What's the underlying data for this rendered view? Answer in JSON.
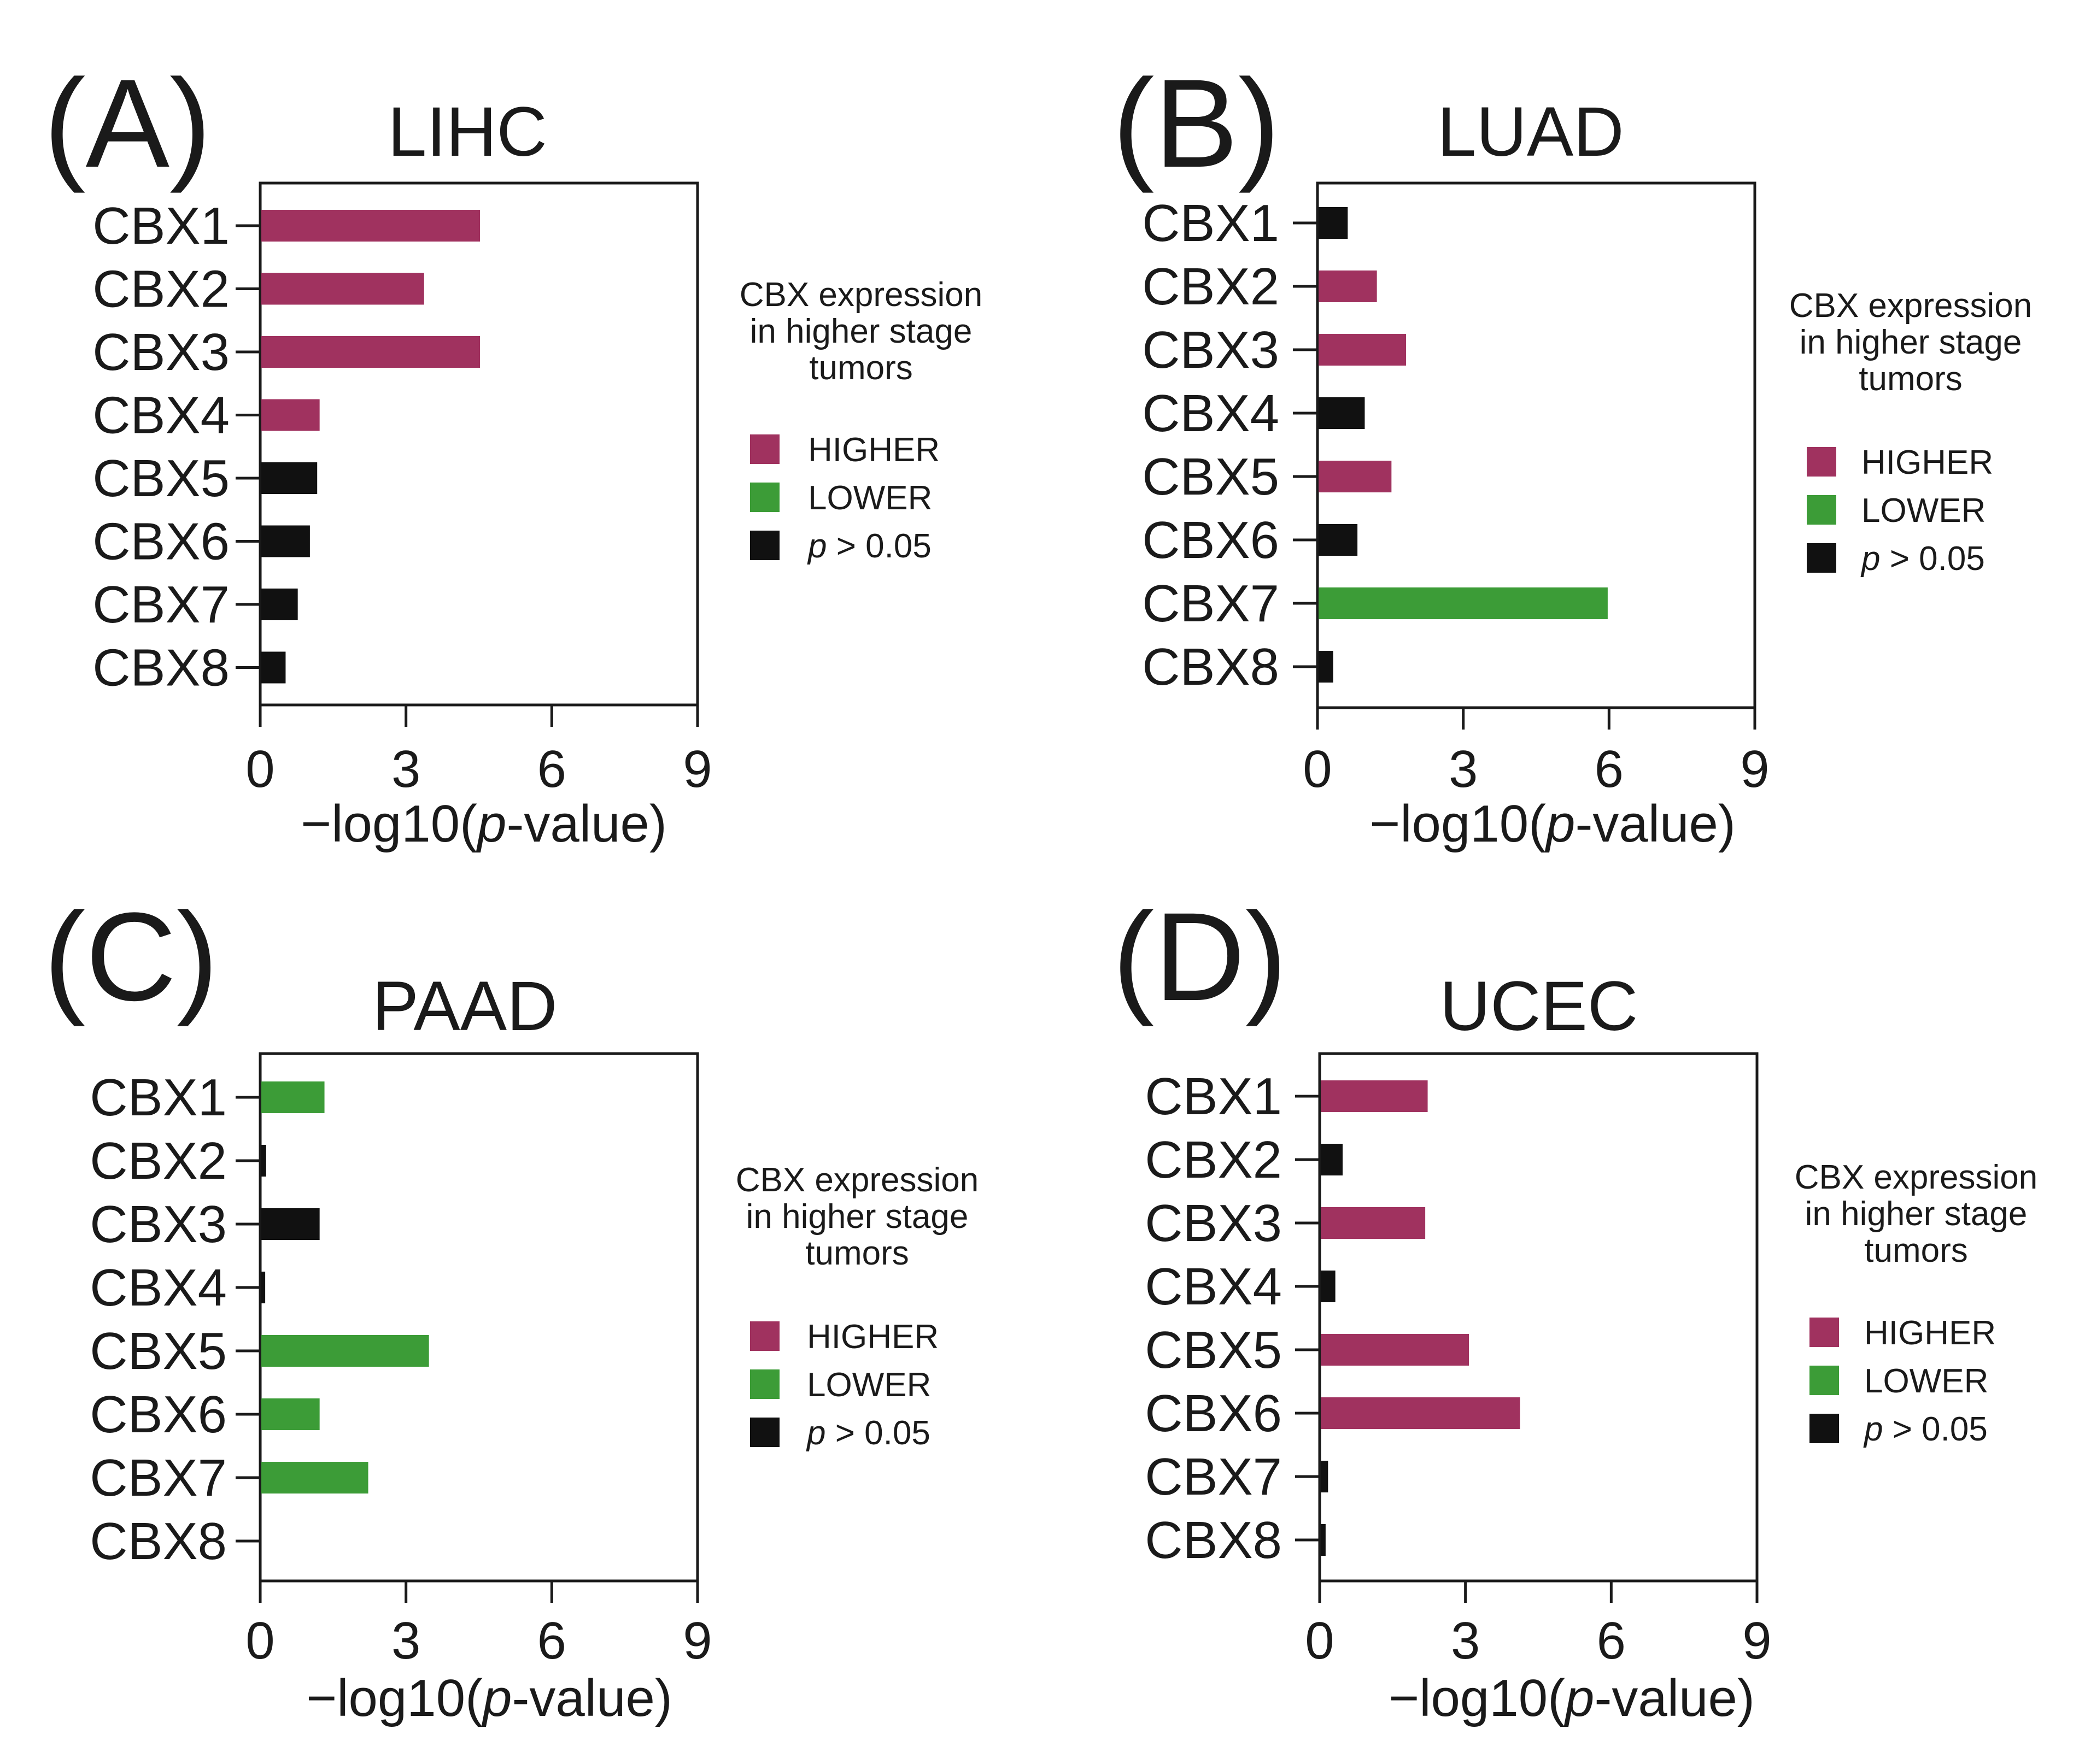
{
  "legend_heading": [
    "CBX expression",
    "in higher stage",
    "tumors"
  ],
  "legend_items": [
    {
      "key": "higher",
      "label": "HIGHER",
      "italic_prefix": ""
    },
    {
      "key": "lower",
      "label": "LOWER",
      "italic_prefix": ""
    },
    {
      "key": "ns",
      "label": " > 0.05",
      "italic_prefix": "p"
    }
  ],
  "colors": {
    "higher": "#a0325f",
    "lower": "#3c9c37",
    "ns": "#111111",
    "axis": "#1a1a1a"
  },
  "chart_data": [
    {
      "panel_label": "(A)",
      "type": "bar",
      "orientation": "horizontal",
      "title": "LIHC",
      "categories": [
        "CBX1",
        "CBX2",
        "CBX3",
        "CBX4",
        "CBX5",
        "CBX6",
        "CBX7",
        "CBX8"
      ],
      "values": [
        4.5,
        3.35,
        4.5,
        1.2,
        1.15,
        1.0,
        0.75,
        0.5
      ],
      "groups": [
        "higher",
        "higher",
        "higher",
        "higher",
        "ns",
        "ns",
        "ns",
        "ns"
      ],
      "xticks": [
        "0",
        "3",
        "6",
        "9"
      ],
      "xlim": [
        0,
        9
      ],
      "xlabel_parts": [
        "−log10(",
        "p",
        "-value)"
      ],
      "legend": "right",
      "grid": false
    },
    {
      "panel_label": "(B)",
      "type": "bar",
      "orientation": "horizontal",
      "title": "LUAD",
      "categories": [
        "CBX1",
        "CBX2",
        "CBX3",
        "CBX4",
        "CBX5",
        "CBX6",
        "CBX7",
        "CBX8"
      ],
      "values": [
        0.6,
        1.2,
        1.8,
        0.95,
        1.5,
        0.8,
        5.95,
        0.3
      ],
      "groups": [
        "ns",
        "higher",
        "higher",
        "ns",
        "higher",
        "ns",
        "lower",
        "ns"
      ],
      "xticks": [
        "0",
        "3",
        "6",
        "9"
      ],
      "xlim": [
        0,
        9
      ],
      "xlabel_parts": [
        "−log10(",
        "p",
        "-value)"
      ],
      "legend": "right",
      "grid": false
    },
    {
      "panel_label": "(C)",
      "type": "bar",
      "orientation": "horizontal",
      "title": "PAAD",
      "categories": [
        "CBX1",
        "CBX2",
        "CBX3",
        "CBX4",
        "CBX5",
        "CBX6",
        "CBX7",
        "CBX8"
      ],
      "values": [
        1.3,
        0.1,
        1.2,
        0.08,
        3.45,
        1.2,
        2.2,
        0.0
      ],
      "groups": [
        "lower",
        "ns",
        "ns",
        "ns",
        "lower",
        "lower",
        "lower",
        "ns"
      ],
      "xticks": [
        "0",
        "3",
        "6",
        "9"
      ],
      "xlim": [
        0,
        9
      ],
      "xlabel_parts": [
        "−log10(",
        "p",
        "-value)"
      ],
      "legend": "right",
      "grid": false
    },
    {
      "panel_label": "(D)",
      "type": "bar",
      "orientation": "horizontal",
      "title": "UCEC",
      "categories": [
        "CBX1",
        "CBX2",
        "CBX3",
        "CBX4",
        "CBX5",
        "CBX6",
        "CBX7",
        "CBX8"
      ],
      "values": [
        2.2,
        0.45,
        2.15,
        0.3,
        3.05,
        4.1,
        0.15,
        0.1
      ],
      "groups": [
        "higher",
        "ns",
        "higher",
        "ns",
        "higher",
        "higher",
        "ns",
        "ns"
      ],
      "xticks": [
        "0",
        "3",
        "6",
        "9"
      ],
      "xlim": [
        0,
        9
      ],
      "xlabel_parts": [
        "−log10(",
        "p",
        "-value)"
      ],
      "legend": "right",
      "grid": false
    }
  ]
}
